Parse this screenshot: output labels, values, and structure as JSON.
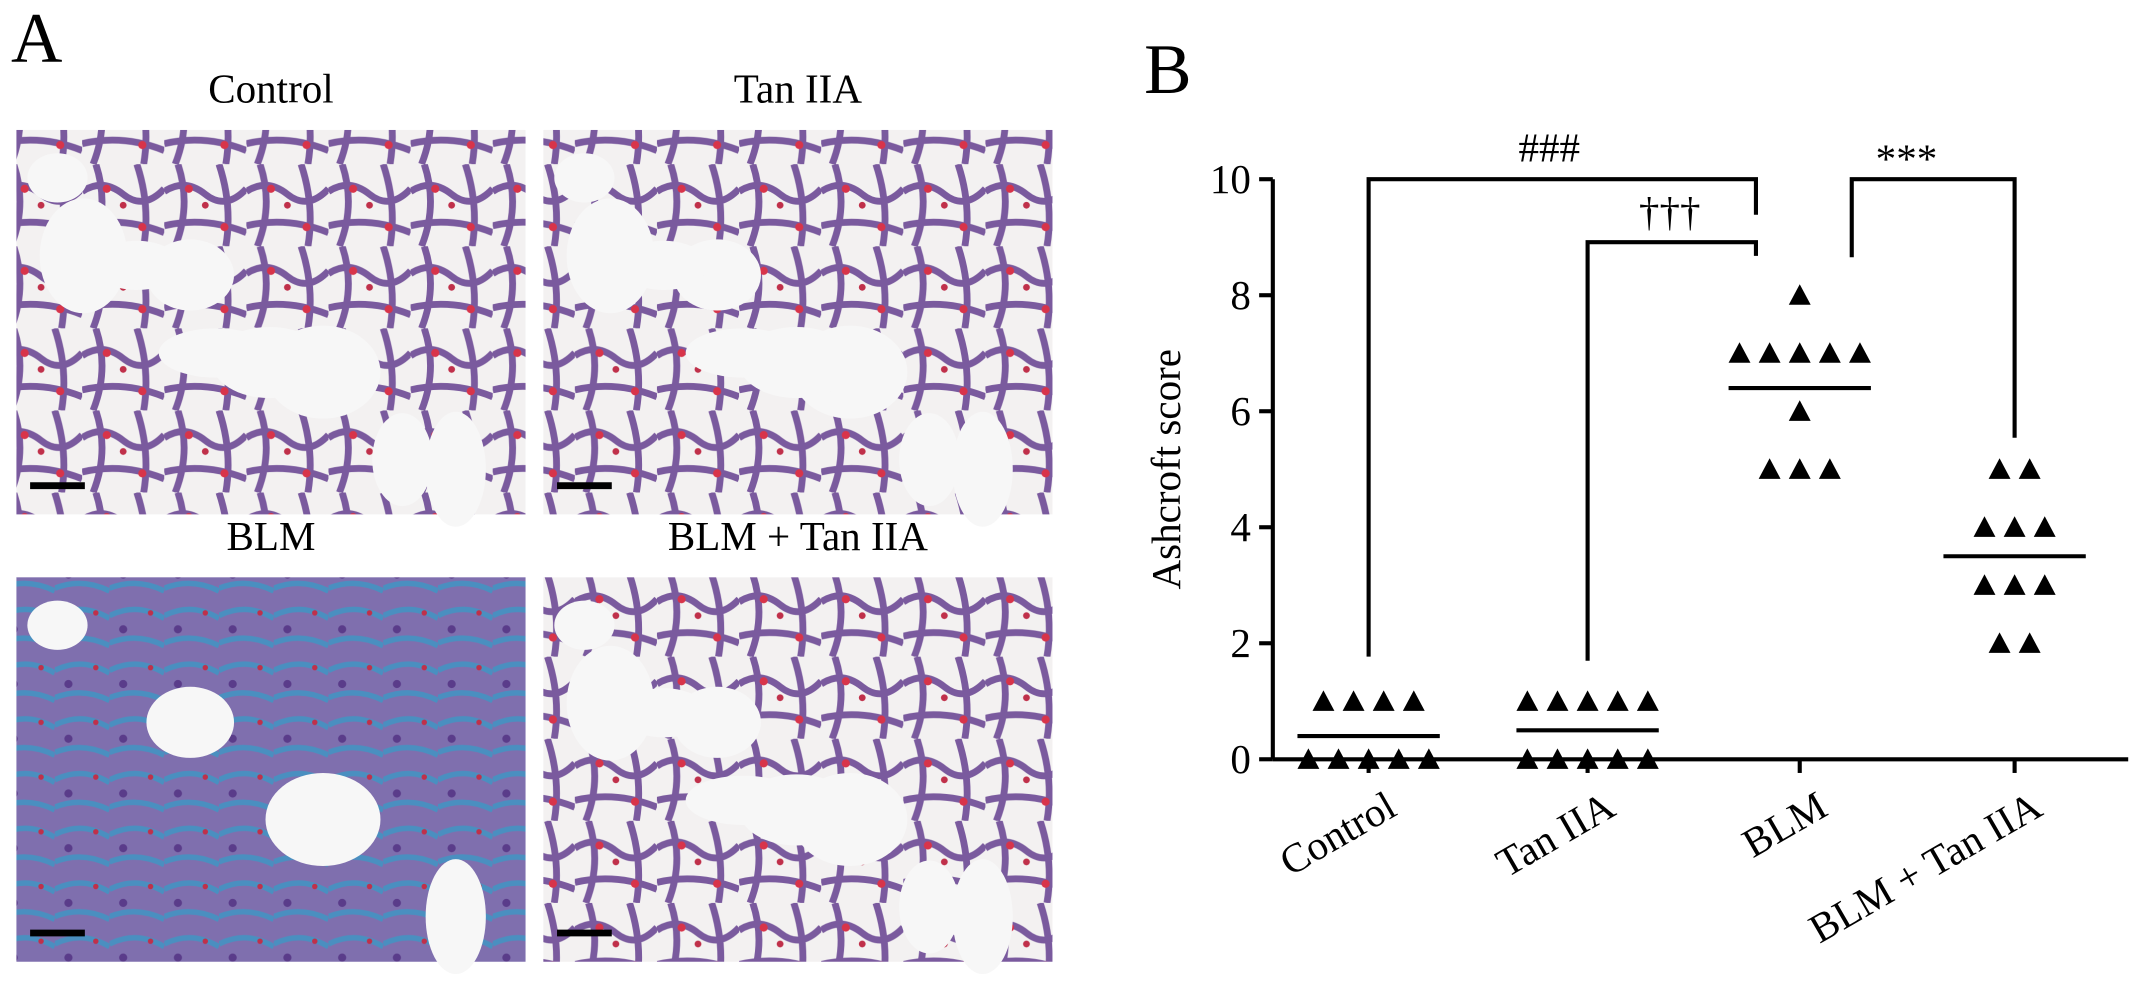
{
  "panel_a": {
    "label": "A",
    "images": [
      {
        "title": "Control"
      },
      {
        "title": "Tan IIA"
      },
      {
        "title": "BLM"
      },
      {
        "title": "BLM + Tan IIA"
      }
    ]
  },
  "chart_data": {
    "type": "dot",
    "panel_label": "B",
    "ylabel": "Ashcroft score",
    "categories": [
      "Control",
      "Tan IIA",
      "BLM",
      "BLM + Tan IIA"
    ],
    "groups": [
      {
        "values": [
          1,
          1,
          1,
          1,
          0,
          0,
          0,
          0,
          0
        ],
        "mean": 0.4
      },
      {
        "values": [
          1,
          1,
          1,
          1,
          1,
          0,
          0,
          0,
          0,
          0
        ],
        "mean": 0.5
      },
      {
        "values": [
          8,
          7,
          7,
          7,
          7,
          7,
          6,
          5,
          5,
          5
        ],
        "mean": 6.4
      },
      {
        "values": [
          5,
          5,
          4,
          4,
          4,
          3,
          3,
          3,
          2,
          2
        ],
        "mean": 3.5
      }
    ],
    "color": "#000000",
    "ylim": [
      0,
      10
    ],
    "yticks": [
      0,
      2,
      4,
      6,
      8,
      10
    ],
    "annotations": [
      "###",
      "†††",
      "***"
    ]
  }
}
